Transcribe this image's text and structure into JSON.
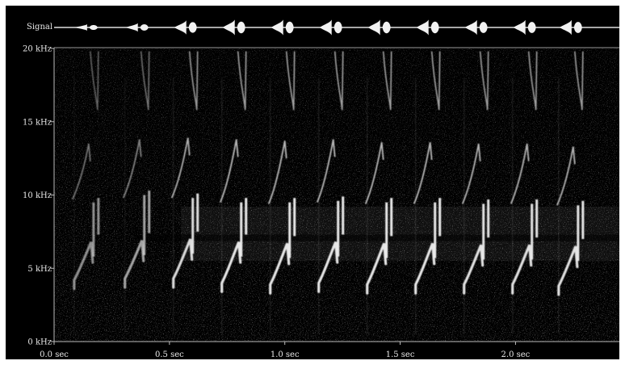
{
  "signal_label": "Signal",
  "chart_data": {
    "type": "spectrogram",
    "signal_label": "Signal",
    "y_axis": {
      "unit": "kHz",
      "ylim": [
        0,
        20
      ],
      "tick_labels": [
        "0 kHz",
        "5 kHz",
        "10 kHz",
        "15 kHz",
        "20 kHz"
      ],
      "ticks": [
        0,
        5,
        10,
        15,
        20
      ]
    },
    "x_axis": {
      "unit": "sec",
      "tick_labels": [
        "0.0 sec",
        "0.5 sec",
        "1.0 sec",
        "1.5 sec",
        "2.0 sec"
      ],
      "ticks": [
        0.0,
        0.5,
        1.0,
        1.5,
        2.0
      ]
    },
    "grid": false,
    "background_color": "#000000",
    "trace_color": "#e6e6e6",
    "notes": [
      {
        "t": 0.15,
        "low_khz": 4.2,
        "peak_khz": 6.8,
        "high_khz": 9.5,
        "harmonic_khz": 13.5,
        "amplitude": 0.25
      },
      {
        "t": 0.37,
        "low_khz": 4.3,
        "peak_khz": 6.9,
        "high_khz": 10.0,
        "harmonic_khz": 13.8,
        "amplitude": 0.4
      },
      {
        "t": 0.58,
        "low_khz": 4.3,
        "peak_khz": 7.0,
        "high_khz": 9.8,
        "harmonic_khz": 13.9,
        "amplitude": 0.85
      },
      {
        "t": 0.79,
        "low_khz": 4.0,
        "peak_khz": 6.8,
        "high_khz": 9.5,
        "harmonic_khz": 13.8,
        "amplitude": 0.95
      },
      {
        "t": 1.0,
        "low_khz": 3.9,
        "peak_khz": 6.7,
        "high_khz": 9.5,
        "harmonic_khz": 13.7,
        "amplitude": 0.95
      },
      {
        "t": 1.21,
        "low_khz": 4.0,
        "peak_khz": 6.8,
        "high_khz": 9.6,
        "harmonic_khz": 13.8,
        "amplitude": 0.95
      },
      {
        "t": 1.42,
        "low_khz": 3.9,
        "peak_khz": 6.7,
        "high_khz": 9.5,
        "harmonic_khz": 13.6,
        "amplitude": 0.95
      },
      {
        "t": 1.63,
        "low_khz": 3.9,
        "peak_khz": 6.7,
        "high_khz": 9.5,
        "harmonic_khz": 13.6,
        "amplitude": 0.95
      },
      {
        "t": 1.84,
        "low_khz": 3.9,
        "peak_khz": 6.6,
        "high_khz": 9.4,
        "harmonic_khz": 13.5,
        "amplitude": 0.9
      },
      {
        "t": 2.05,
        "low_khz": 3.9,
        "peak_khz": 6.6,
        "high_khz": 9.4,
        "harmonic_khz": 13.5,
        "amplitude": 0.9
      },
      {
        "t": 2.25,
        "low_khz": 3.8,
        "peak_khz": 6.5,
        "high_khz": 9.3,
        "harmonic_khz": 13.3,
        "amplitude": 0.9
      }
    ]
  }
}
